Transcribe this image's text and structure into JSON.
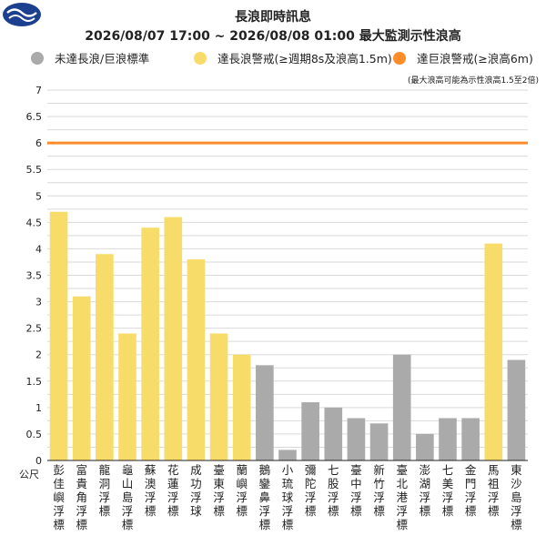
{
  "header": {
    "title": "長浪即時訊息",
    "subtitle": "2026/08/07 17:00 ~ 2026/08/08 01:00 最大監測示性浪高"
  },
  "legend": [
    {
      "label": "未達長浪/巨浪標準",
      "color": "#aaaaaa"
    },
    {
      "label": "達長浪警戒(≥週期8s及浪高1.5m)",
      "color": "#f8dc6a"
    },
    {
      "label": "達巨浪警戒(≥浪高6m)",
      "color": "#ff8c2a"
    }
  ],
  "note": "(最大浪高可能為示性浪高1.5至2倍)",
  "unit_label": "公尺",
  "chart_data": {
    "type": "bar",
    "categories": [
      "彭佳嶼浮標",
      "富貴角浮標",
      "龍洞浮標",
      "龜山島浮標",
      "蘇澳浮標",
      "花蓮浮標",
      "成功浮球",
      "臺東浮標",
      "蘭嶼浮標",
      "鵝鑾鼻浮標",
      "小琉球浮標",
      "彌陀浮標",
      "七股浮標",
      "臺中浮標",
      "新竹浮標",
      "臺北港浮標",
      "澎湖浮標",
      "七美浮標",
      "金門浮標",
      "馬祖浮標",
      "東沙島浮標"
    ],
    "values": [
      4.7,
      3.1,
      3.9,
      2.4,
      4.4,
      4.6,
      3.8,
      2.4,
      2.0,
      1.8,
      0.2,
      1.1,
      1.0,
      0.8,
      0.7,
      2.0,
      0.5,
      0.8,
      0.8,
      4.1,
      1.9
    ],
    "status": [
      "long",
      "long",
      "long",
      "long",
      "long",
      "long",
      "long",
      "long",
      "long",
      "none",
      "none",
      "none",
      "none",
      "none",
      "none",
      "none",
      "none",
      "none",
      "none",
      "long",
      "none"
    ],
    "yticks": [
      "0",
      "0.5",
      "1",
      "1.5",
      "2",
      "2.5",
      "3",
      "3.5",
      "4",
      "4.5",
      "5",
      "5.5",
      "6",
      "6.5",
      "7"
    ],
    "ylim": [
      0,
      7
    ],
    "threshold": 6,
    "colors": {
      "none": "#aaaaaa",
      "long": "#f8dc6a",
      "giant": "#ff8c2a",
      "threshold": "#ff8c2a",
      "grid": "#d9d9d9"
    }
  }
}
